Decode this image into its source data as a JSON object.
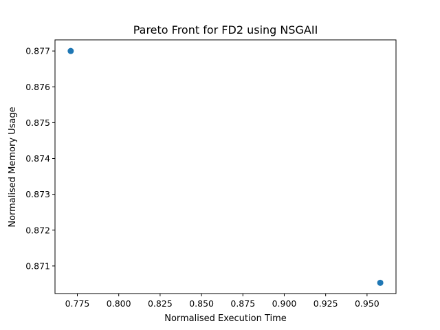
{
  "chart_data": {
    "type": "scatter",
    "title": "Pareto Front for FD2 using NSGAII",
    "xlabel": "Normalised Execution Time",
    "ylabel": "Normalised Memory Usage",
    "x": [
      0.771,
      0.958
    ],
    "y": [
      0.877,
      0.87053
    ],
    "xlim": [
      0.7615,
      0.9675
    ],
    "ylim": [
      0.87023,
      0.87731
    ],
    "xticks": [
      0.775,
      0.8,
      0.825,
      0.85,
      0.875,
      0.9,
      0.925,
      0.95
    ],
    "xtick_labels": [
      "0.775",
      "0.800",
      "0.825",
      "0.850",
      "0.875",
      "0.900",
      "0.925",
      "0.950"
    ],
    "yticks": [
      0.871,
      0.872,
      0.873,
      0.874,
      0.875,
      0.876,
      0.877
    ],
    "ytick_labels": [
      "0.871",
      "0.872",
      "0.873",
      "0.874",
      "0.875",
      "0.876",
      "0.877"
    ],
    "grid": false,
    "marker_color": "#1f77b4"
  }
}
